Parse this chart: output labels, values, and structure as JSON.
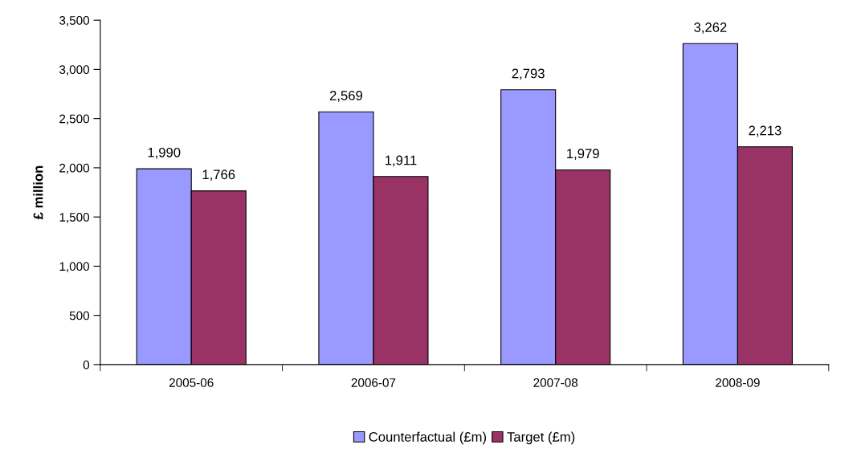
{
  "chart_data": {
    "type": "bar",
    "ylabel": "£ million",
    "categories": [
      "2005-06",
      "2006-07",
      "2007-08",
      "2008-09"
    ],
    "series": [
      {
        "name": "Counterfactual (£m)",
        "color": "#9999ff",
        "values": [
          1990,
          2569,
          2793,
          3262
        ],
        "value_labels": [
          "1,990",
          "2,569",
          "2,793",
          "3,262"
        ]
      },
      {
        "name": "Target (£m)",
        "color": "#993366",
        "values": [
          1766,
          1911,
          1979,
          2213
        ],
        "value_labels": [
          "1,766",
          "1,911",
          "1,979",
          "2,213"
        ]
      }
    ],
    "ylim": [
      0,
      3500
    ],
    "yticks": [
      0,
      500,
      {
        "value": 1000,
        "label": "1,000"
      },
      {
        "value": 1500,
        "label": "1,500"
      },
      {
        "value": 2000,
        "label": "2,000"
      },
      {
        "value": 2500,
        "label": "2,500"
      },
      {
        "value": 3000,
        "label": "3,000"
      },
      {
        "value": 3500,
        "label": "3,500"
      }
    ],
    "grid": false,
    "legend": "bottom"
  }
}
